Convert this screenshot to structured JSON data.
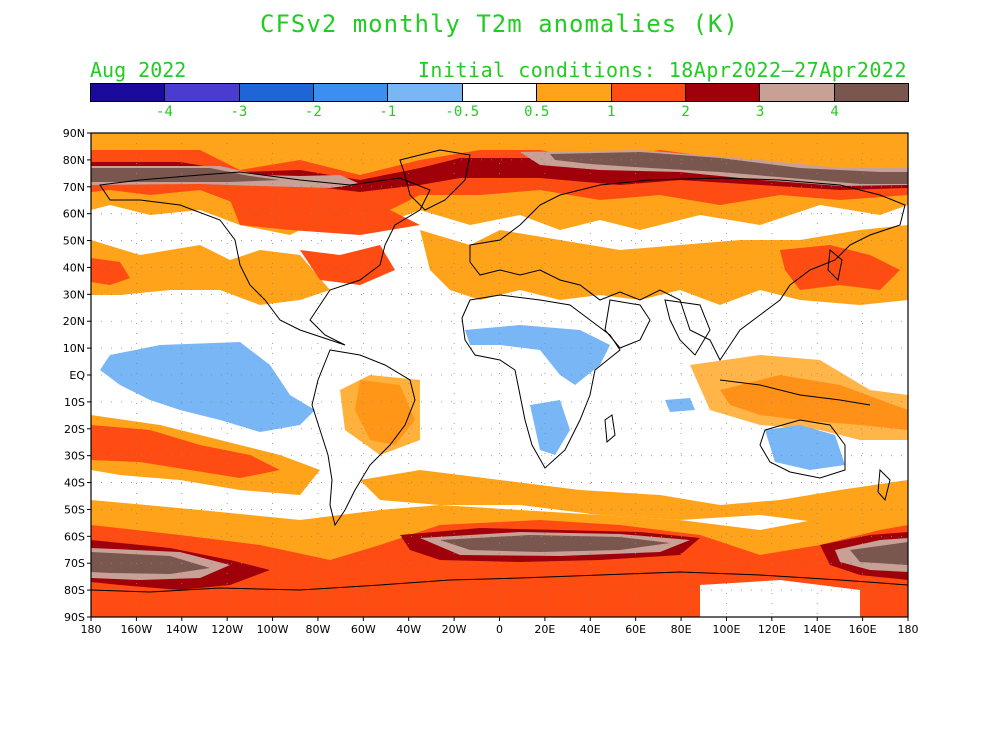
{
  "title": "CFSv2 monthly T2m anomalies (K)",
  "valid_month": "Aug 2022",
  "initial_conditions": "Initial conditions: 18Apr2022—27Apr2022",
  "text_color": "#22cc22",
  "colorbar": {
    "colors": [
      "#1c0a9c",
      "#4a3cd0",
      "#1e66d8",
      "#3a8ff0",
      "#78b6f5",
      "#ffffff",
      "#ffa31a",
      "#ff4c12",
      "#a0000a",
      "#c8a096",
      "#7a574e"
    ],
    "labels": [
      "-4",
      "-3",
      "-2",
      "-1",
      "-0.5",
      "0.5",
      "1",
      "2",
      "3",
      "4"
    ]
  },
  "axes": {
    "lat_labels": [
      "90N",
      "80N",
      "70N",
      "60N",
      "50N",
      "40N",
      "30N",
      "20N",
      "10N",
      "EQ",
      "10S",
      "20S",
      "30S",
      "40S",
      "50S",
      "60S",
      "70S",
      "80S",
      "90S"
    ],
    "lon_labels": [
      "180",
      "160W",
      "140W",
      "120W",
      "100W",
      "80W",
      "60W",
      "40W",
      "20W",
      "0",
      "20E",
      "40E",
      "60E",
      "80E",
      "100E",
      "120E",
      "140E",
      "160E",
      "180"
    ]
  }
}
